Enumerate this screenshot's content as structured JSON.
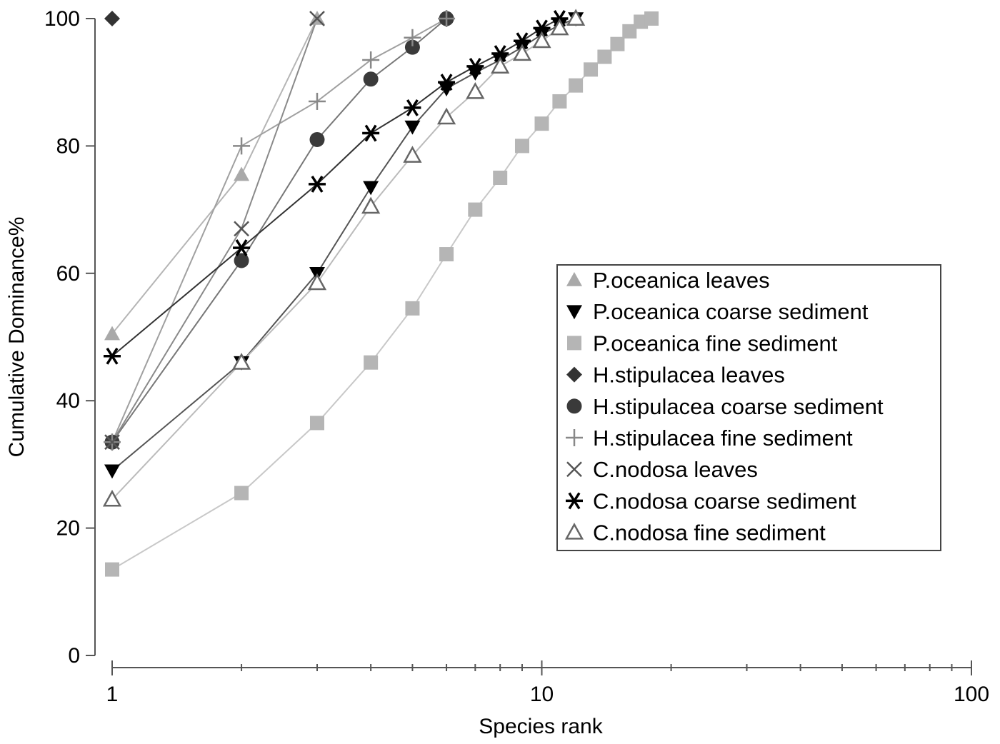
{
  "chart_data": {
    "type": "line",
    "title": "",
    "xlabel": "Species rank",
    "ylabel": "Cumulative Dominance%",
    "x_scale": "log",
    "xlim": [
      1,
      100
    ],
    "ylim": [
      0,
      100
    ],
    "x_ticks": [
      1,
      10,
      100
    ],
    "y_ticks": [
      0,
      20,
      40,
      60,
      80,
      100
    ],
    "grid": false,
    "legend_position": "center-right",
    "series": [
      {
        "name": "P.oceanica leaves",
        "marker": "triangle-filled",
        "color": "#a9a9a9",
        "line_color": "#b5b5b5",
        "x": [
          1,
          2,
          3
        ],
        "y": [
          50.5,
          75.5,
          100
        ]
      },
      {
        "name": "P.oceanica coarse sediment",
        "marker": "triangle-down-filled",
        "color": "#000000",
        "line_color": "#555555",
        "x": [
          1,
          2,
          3,
          4,
          5,
          6,
          7,
          8,
          9,
          10,
          11,
          12
        ],
        "y": [
          29,
          46,
          60,
          73.5,
          83,
          89,
          91.5,
          93.5,
          95.5,
          97.5,
          99,
          100
        ]
      },
      {
        "name": "P.oceanica fine sediment",
        "marker": "square-filled",
        "color": "#b5b5b5",
        "line_color": "#c8c8c8",
        "x": [
          1,
          2,
          3,
          4,
          5,
          6,
          7,
          8,
          9,
          10,
          11,
          12,
          13,
          14,
          15,
          16,
          17,
          18
        ],
        "y": [
          13.5,
          25.5,
          36.5,
          46,
          54.5,
          63,
          70,
          75,
          80,
          83.5,
          87,
          89.5,
          92,
          94,
          96,
          98,
          99.5,
          100
        ]
      },
      {
        "name": "H.stipulacea leaves",
        "marker": "diamond-filled",
        "color": "#333333",
        "line_color": "#555555",
        "x": [
          1
        ],
        "y": [
          100
        ]
      },
      {
        "name": "H.stipulacea coarse sediment",
        "marker": "circle-filled",
        "color": "#3a3a3a",
        "line_color": "#777777",
        "x": [
          1,
          2,
          3,
          4,
          5,
          6
        ],
        "y": [
          33.5,
          62,
          81,
          90.5,
          95.5,
          100
        ]
      },
      {
        "name": "H.stipulacea fine sediment",
        "marker": "plus",
        "color": "#888888",
        "line_color": "#a0a0a0",
        "x": [
          1,
          2,
          3,
          4,
          5,
          6
        ],
        "y": [
          33.5,
          80,
          87,
          93.5,
          97,
          100
        ]
      },
      {
        "name": "C.nodosa leaves",
        "marker": "x",
        "color": "#555555",
        "line_color": "#8a8a8a",
        "x": [
          1,
          2,
          3
        ],
        "y": [
          33.5,
          67,
          100
        ]
      },
      {
        "name": "C.nodosa coarse sediment",
        "marker": "asterisk",
        "color": "#000000",
        "line_color": "#333333",
        "x": [
          1,
          2,
          3,
          4,
          5,
          6,
          7,
          8,
          9,
          10,
          11
        ],
        "y": [
          47,
          64,
          74,
          82,
          86,
          90,
          92.5,
          94.5,
          96.5,
          98.5,
          100
        ]
      },
      {
        "name": "C.nodosa fine sediment",
        "marker": "triangle-open",
        "color": "#666666",
        "line_color": "#bbbbbb",
        "x": [
          1,
          2,
          3,
          4,
          5,
          6,
          7,
          8,
          9,
          10,
          11,
          12
        ],
        "y": [
          24.5,
          46,
          58.5,
          70.5,
          78.5,
          84.5,
          88.5,
          92.5,
          94.5,
          96.5,
          98.5,
          100
        ]
      }
    ]
  }
}
